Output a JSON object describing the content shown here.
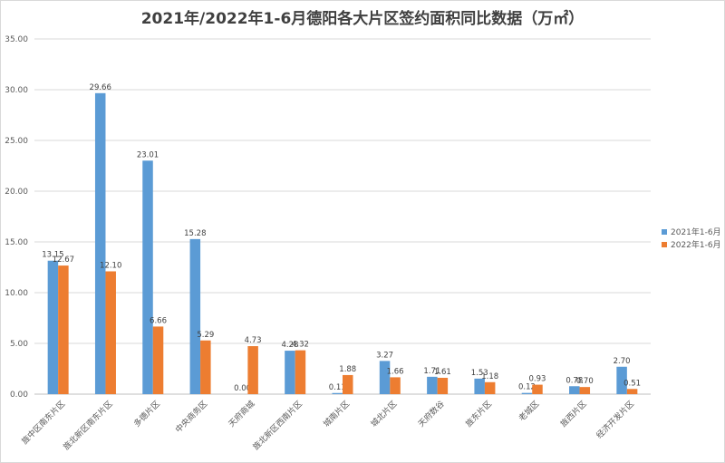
{
  "chart_data": {
    "type": "bar",
    "title": "2021年/2022年1-6月德阳各大片区签约面积同比数据（万㎡）",
    "categories": [
      "旌中区南东片区",
      "旌北新区南东片区",
      "多德片区",
      "中央商务区",
      "天府商城",
      "旌北新区西南片区",
      "城南片区",
      "城北片区",
      "天府数谷",
      "旌东片区",
      "老城区",
      "旌西片区",
      "经济开发片区"
    ],
    "series": [
      {
        "name": "2021年1-6月",
        "color": "#5b9bd5",
        "values": [
          13.15,
          29.66,
          23.01,
          15.28,
          0.0,
          4.28,
          0.11,
          3.27,
          1.71,
          1.53,
          0.12,
          0.78,
          2.7
        ]
      },
      {
        "name": "2022年1-6月",
        "color": "#ed7d31",
        "values": [
          12.67,
          12.1,
          6.66,
          5.29,
          4.73,
          4.32,
          1.88,
          1.66,
          1.61,
          1.18,
          0.93,
          0.7,
          0.51
        ]
      }
    ],
    "ylim": [
      0,
      35
    ],
    "yticks": [
      "0.00",
      "5.00",
      "10.00",
      "15.00",
      "20.00",
      "25.00",
      "30.00",
      "35.00"
    ],
    "grid": true,
    "legend": "right"
  }
}
